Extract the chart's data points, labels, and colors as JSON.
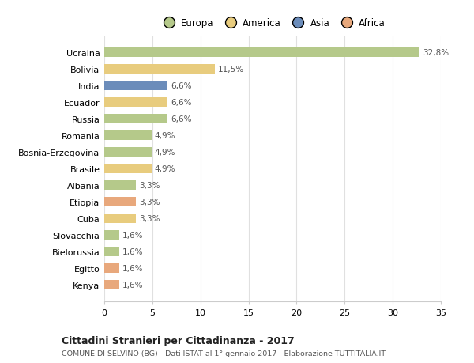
{
  "countries": [
    "Ucraina",
    "Bolivia",
    "India",
    "Ecuador",
    "Russia",
    "Romania",
    "Bosnia-Erzegovina",
    "Brasile",
    "Albania",
    "Etiopia",
    "Cuba",
    "Slovacchia",
    "Bielorussia",
    "Egitto",
    "Kenya"
  ],
  "values": [
    32.8,
    11.5,
    6.6,
    6.6,
    6.6,
    4.9,
    4.9,
    4.9,
    3.3,
    3.3,
    3.3,
    1.6,
    1.6,
    1.6,
    1.6
  ],
  "labels": [
    "32,8%",
    "11,5%",
    "6,6%",
    "6,6%",
    "6,6%",
    "4,9%",
    "4,9%",
    "4,9%",
    "3,3%",
    "3,3%",
    "3,3%",
    "1,6%",
    "1,6%",
    "1,6%",
    "1,6%"
  ],
  "continents": [
    "Europa",
    "America",
    "Asia",
    "America",
    "Europa",
    "Europa",
    "Europa",
    "America",
    "Europa",
    "Africa",
    "America",
    "Europa",
    "Europa",
    "Africa",
    "Africa"
  ],
  "colors": {
    "Europa": "#b5c98a",
    "America": "#e8cc7e",
    "Asia": "#6b8cba",
    "Africa": "#e8a87c"
  },
  "title": "Cittadini Stranieri per Cittadinanza - 2017",
  "subtitle": "COMUNE DI SELVINO (BG) - Dati ISTAT al 1° gennaio 2017 - Elaborazione TUTTITALIA.IT",
  "xlim": [
    0,
    35
  ],
  "xticks": [
    0,
    5,
    10,
    15,
    20,
    25,
    30,
    35
  ],
  "background_color": "#ffffff",
  "grid_color": "#e0e0e0"
}
